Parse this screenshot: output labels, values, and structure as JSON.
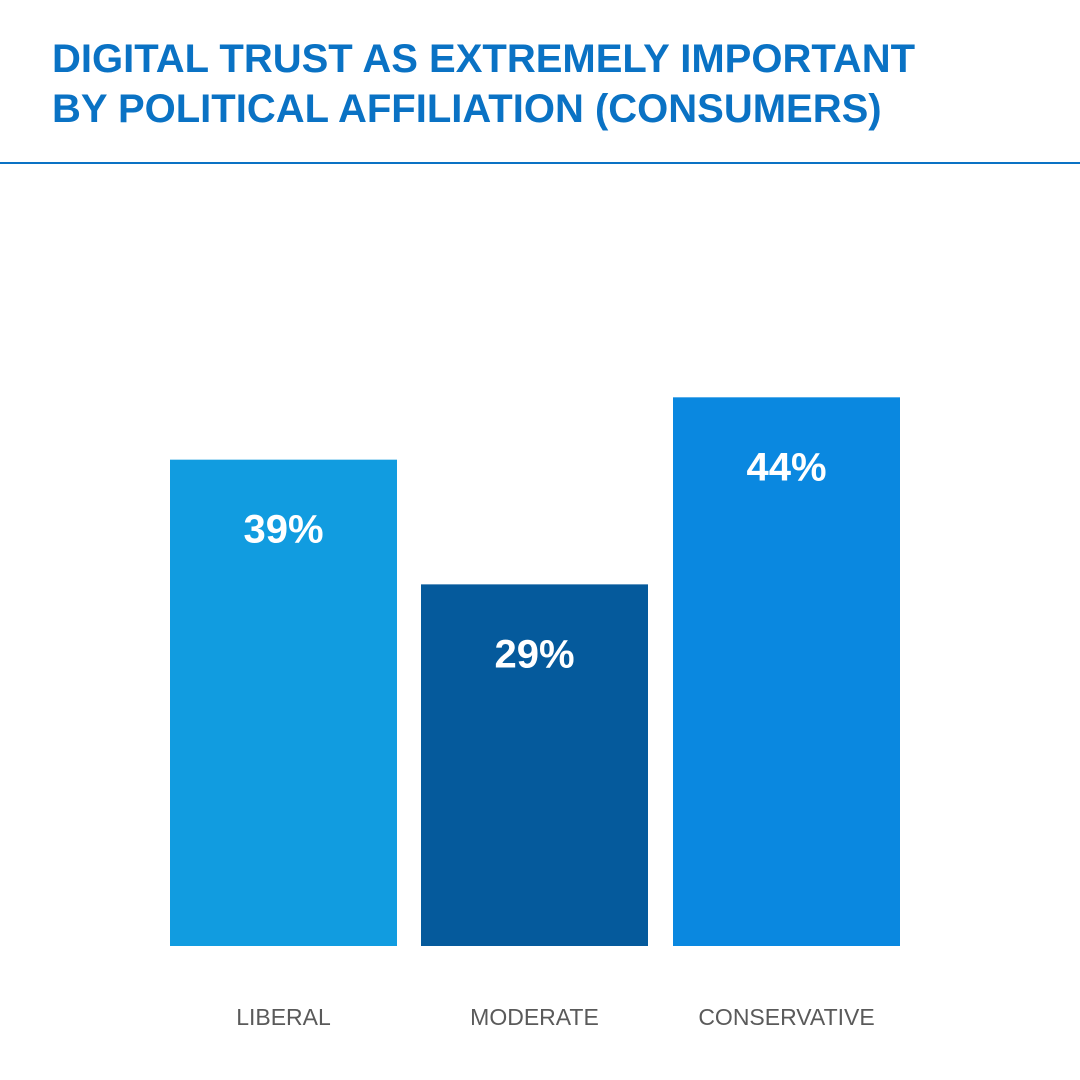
{
  "header": {
    "title_line1": "DIGITAL TRUST AS EXTREMELY IMPORTANT",
    "title_line2": "BY POLITICAL AFFILIATION (CONSUMERS)"
  },
  "chart_data": {
    "type": "bar",
    "title": "DIGITAL TRUST AS EXTREMELY IMPORTANT BY POLITICAL AFFILIATION (CONSUMERS)",
    "categories": [
      "LIBERAL",
      "MODERATE",
      "CONSERVATIVE"
    ],
    "values": [
      39,
      29,
      44
    ],
    "value_labels": [
      "39%",
      "29%",
      "44%"
    ],
    "colors": [
      "#119ce0",
      "#055a9c",
      "#0a88e0"
    ],
    "unit": "%",
    "grid": false,
    "legend": "none"
  }
}
